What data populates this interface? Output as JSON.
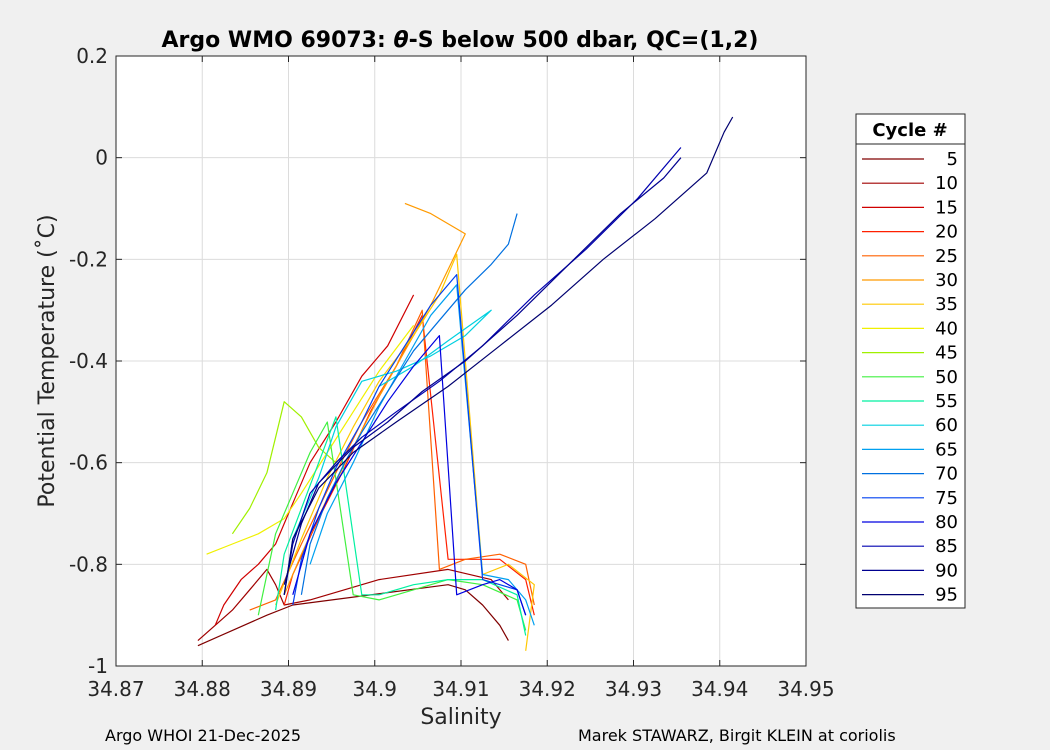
{
  "chart_data": {
    "type": "line",
    "title_pre": "Argo WMO 69073: ",
    "title_theta": "θ",
    "title_post": "-S below 500 dbar,  QC=(1,2)",
    "xlabel": "Salinity",
    "ylabel": "Potential Temperature (˚C)",
    "xlim": [
      34.87,
      34.95
    ],
    "ylim": [
      -1,
      0.2
    ],
    "xticks": [
      "34.87",
      "34.88",
      "34.89",
      "34.9",
      "34.91",
      "34.92",
      "34.93",
      "34.94",
      "34.95"
    ],
    "yticks": [
      "-1",
      "-0.8",
      "-0.6",
      "-0.4",
      "-0.2",
      "0",
      "0.2"
    ],
    "grid": true,
    "legend_title": "Cycle #",
    "legend_placement": "right, outside plot",
    "series": [
      {
        "name": "5",
        "color": "#800000",
        "x": [
          34.8795,
          34.8835,
          34.8875,
          34.8905,
          34.9085,
          34.9105,
          34.9125,
          34.9145,
          34.9155
        ],
        "y": [
          -0.96,
          -0.93,
          -0.9,
          -0.88,
          -0.84,
          -0.85,
          -0.88,
          -0.92,
          -0.95
        ]
      },
      {
        "name": "10",
        "color": "#a00000",
        "x": [
          34.8795,
          34.8815,
          34.8835,
          34.8855,
          34.8875,
          34.8885,
          34.8895,
          34.8925,
          34.9005,
          34.9085,
          34.9135,
          34.9155
        ],
        "y": [
          -0.95,
          -0.92,
          -0.89,
          -0.85,
          -0.81,
          -0.84,
          -0.88,
          -0.87,
          -0.83,
          -0.81,
          -0.83,
          -0.87
        ]
      },
      {
        "name": "15",
        "color": "#d00000",
        "x": [
          34.8815,
          34.8825,
          34.8845,
          34.8865,
          34.8885,
          34.8905,
          34.8925,
          34.8955,
          34.8985,
          34.9015,
          34.9045
        ],
        "y": [
          -0.92,
          -0.88,
          -0.83,
          -0.8,
          -0.76,
          -0.68,
          -0.6,
          -0.52,
          -0.43,
          -0.37,
          -0.27
        ]
      },
      {
        "name": "20",
        "color": "#ff2000",
        "x": [
          34.8895,
          34.8905,
          34.8935,
          34.8965,
          34.8995,
          34.9025,
          34.9055,
          34.9085,
          34.9145,
          34.9175,
          34.9185
        ],
        "y": [
          -0.88,
          -0.82,
          -0.71,
          -0.61,
          -0.5,
          -0.41,
          -0.31,
          -0.79,
          -0.79,
          -0.83,
          -0.9
        ]
      },
      {
        "name": "25",
        "color": "#ff6000",
        "x": [
          34.8855,
          34.8885,
          34.8915,
          34.8955,
          34.8985,
          34.9025,
          34.9055,
          34.9075,
          34.9105,
          34.9145,
          34.9175,
          34.9185
        ],
        "y": [
          -0.89,
          -0.87,
          -0.76,
          -0.62,
          -0.52,
          -0.41,
          -0.3,
          -0.81,
          -0.79,
          -0.78,
          -0.8,
          -0.88
        ]
      },
      {
        "name": "30",
        "color": "#ff9a00",
        "x": [
          34.8895,
          34.8915,
          34.8945,
          34.8975,
          34.9005,
          34.9035,
          34.9065,
          34.9085,
          34.9105,
          34.9065,
          34.9035
        ],
        "y": [
          -0.86,
          -0.78,
          -0.67,
          -0.57,
          -0.47,
          -0.38,
          -0.29,
          -0.22,
          -0.15,
          -0.11,
          -0.09
        ]
      },
      {
        "name": "35",
        "color": "#ffc800",
        "x": [
          34.8885,
          34.8915,
          34.8945,
          34.8975,
          34.9005,
          34.9045,
          34.9075,
          34.9095,
          34.9125,
          34.9155,
          34.9185,
          34.9175
        ],
        "y": [
          -0.88,
          -0.75,
          -0.63,
          -0.53,
          -0.44,
          -0.35,
          -0.27,
          -0.19,
          -0.82,
          -0.8,
          -0.84,
          -0.97
        ]
      },
      {
        "name": "40",
        "color": "#f0f000",
        "x": [
          34.8805,
          34.8835,
          34.8865,
          34.8895,
          34.8915,
          34.8945,
          34.8975,
          34.9005,
          34.9045
        ],
        "y": [
          -0.78,
          -0.76,
          -0.74,
          -0.71,
          -0.66,
          -0.58,
          -0.5,
          -0.42,
          -0.33
        ]
      },
      {
        "name": "45",
        "color": "#a0f000",
        "x": [
          34.8835,
          34.8855,
          34.8875,
          34.8885,
          34.8895,
          34.8915,
          34.8935,
          34.8955,
          34.8985
        ],
        "y": [
          -0.74,
          -0.69,
          -0.62,
          -0.55,
          -0.48,
          -0.51,
          -0.57,
          -0.6,
          -0.55
        ]
      },
      {
        "name": "50",
        "color": "#40f040",
        "x": [
          34.8865,
          34.8875,
          34.8885,
          34.8905,
          34.8925,
          34.8945,
          34.8975,
          34.9005,
          34.9045,
          34.9085,
          34.9125,
          34.9165,
          34.9175
        ],
        "y": [
          -0.9,
          -0.82,
          -0.74,
          -0.66,
          -0.58,
          -0.52,
          -0.86,
          -0.87,
          -0.85,
          -0.83,
          -0.84,
          -0.87,
          -0.93
        ]
      },
      {
        "name": "55",
        "color": "#00f0a0",
        "x": [
          34.8885,
          34.8895,
          34.8915,
          34.8935,
          34.8955,
          34.8985,
          34.9005,
          34.9045,
          34.9085,
          34.9125,
          34.9165,
          34.9175
        ],
        "y": [
          -0.89,
          -0.78,
          -0.69,
          -0.6,
          -0.51,
          -0.86,
          -0.86,
          -0.84,
          -0.83,
          -0.83,
          -0.86,
          -0.94
        ]
      },
      {
        "name": "60",
        "color": "#00d0e0",
        "x": [
          34.8895,
          34.8905,
          34.8935,
          34.8955,
          34.8985,
          34.9025,
          34.9065,
          34.9105,
          34.9135,
          34.9085,
          34.9045,
          34.9005
        ],
        "y": [
          -0.86,
          -0.75,
          -0.63,
          -0.53,
          -0.44,
          -0.42,
          -0.39,
          -0.35,
          -0.3,
          -0.36,
          -0.41,
          -0.45
        ]
      },
      {
        "name": "65",
        "color": "#00a0f0",
        "x": [
          34.8925,
          34.8945,
          34.8975,
          34.9005,
          34.9035,
          34.9065,
          34.9095,
          34.9125,
          34.9155,
          34.9175,
          34.9185
        ],
        "y": [
          -0.8,
          -0.7,
          -0.6,
          -0.49,
          -0.4,
          -0.31,
          -0.25,
          -0.82,
          -0.83,
          -0.87,
          -0.92
        ]
      },
      {
        "name": "70",
        "color": "#0070e0",
        "x": [
          34.8915,
          34.8925,
          34.8945,
          34.8965,
          34.8985,
          34.9015,
          34.9045,
          34.9075,
          34.9105,
          34.9135,
          34.9155,
          34.9165
        ],
        "y": [
          -0.86,
          -0.76,
          -0.67,
          -0.6,
          -0.54,
          -0.46,
          -0.38,
          -0.32,
          -0.26,
          -0.21,
          -0.17,
          -0.11
        ]
      },
      {
        "name": "75",
        "color": "#0040f0",
        "x": [
          34.8905,
          34.8915,
          34.8935,
          34.8955,
          34.8985,
          34.9005,
          34.9035,
          34.9065,
          34.9095,
          34.9125,
          34.9165,
          34.9175
        ],
        "y": [
          -0.88,
          -0.79,
          -0.69,
          -0.61,
          -0.52,
          -0.45,
          -0.37,
          -0.29,
          -0.23,
          -0.83,
          -0.85,
          -0.9
        ]
      },
      {
        "name": "80",
        "color": "#0000e0",
        "x": [
          34.8905,
          34.8925,
          34.8955,
          34.8985,
          34.9015,
          34.9045,
          34.9075,
          34.9095,
          34.9125,
          34.9145,
          34.9165,
          34.9175
        ],
        "y": [
          -0.86,
          -0.74,
          -0.64,
          -0.56,
          -0.48,
          -0.41,
          -0.35,
          -0.86,
          -0.84,
          -0.83,
          -0.85,
          -0.9
        ]
      },
      {
        "name": "85",
        "color": "#0000b0",
        "x": [
          34.8895,
          34.8905,
          34.8925,
          34.8955,
          34.8985,
          34.9025,
          34.9075,
          34.9125,
          34.9185,
          34.9245,
          34.9305,
          34.9355
        ],
        "y": [
          -0.86,
          -0.76,
          -0.66,
          -0.6,
          -0.55,
          -0.5,
          -0.44,
          -0.37,
          -0.27,
          -0.18,
          -0.08,
          0.02
        ]
      },
      {
        "name": "90",
        "color": "#000090",
        "x": [
          34.8895,
          34.8915,
          34.8935,
          34.8975,
          34.9015,
          34.9055,
          34.9105,
          34.9165,
          34.9225,
          34.9285,
          34.9335,
          34.9355
        ],
        "y": [
          -0.84,
          -0.72,
          -0.64,
          -0.57,
          -0.52,
          -0.46,
          -0.4,
          -0.31,
          -0.21,
          -0.11,
          -0.04,
          0.0
        ]
      },
      {
        "name": "95",
        "color": "#000070",
        "x": [
          34.8895,
          34.8905,
          34.8935,
          34.8975,
          34.9025,
          34.9085,
          34.9145,
          34.9205,
          34.9265,
          34.9325,
          34.9385,
          34.9405,
          34.9415
        ],
        "y": [
          -0.86,
          -0.75,
          -0.65,
          -0.58,
          -0.52,
          -0.45,
          -0.37,
          -0.29,
          -0.2,
          -0.12,
          -0.03,
          0.05,
          0.08
        ]
      }
    ]
  },
  "footer": {
    "left": "Argo WHOI 21-Dec-2025",
    "right": "Marek STAWARZ, Birgit KLEIN at coriolis"
  }
}
